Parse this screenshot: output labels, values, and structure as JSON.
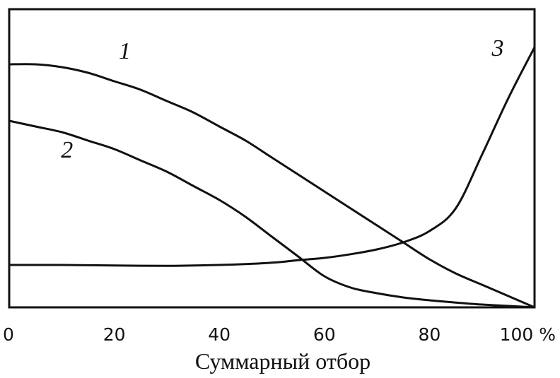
{
  "chart_data": {
    "type": "line",
    "xlabel": "Суммарный отбор",
    "x_ticks": [
      "0",
      "20",
      "40",
      "60",
      "80",
      "100 %"
    ],
    "xlim": [
      0,
      100
    ],
    "ylim": [
      0,
      100
    ],
    "y_ticks_shown": false,
    "grid": false,
    "legend": "none",
    "series": [
      {
        "name": "1",
        "color": "#111111",
        "points": [
          [
            0,
            86
          ],
          [
            5,
            86
          ],
          [
            10,
            85
          ],
          [
            15,
            83
          ],
          [
            20,
            80
          ],
          [
            25,
            77
          ],
          [
            30,
            73
          ],
          [
            35,
            69
          ],
          [
            40,
            64
          ],
          [
            45,
            59
          ],
          [
            50,
            53
          ],
          [
            55,
            47
          ],
          [
            60,
            41
          ],
          [
            65,
            35
          ],
          [
            70,
            29
          ],
          [
            75,
            23
          ],
          [
            80,
            17
          ],
          [
            85,
            12
          ],
          [
            90,
            8
          ],
          [
            95,
            4
          ],
          [
            100,
            0
          ]
        ]
      },
      {
        "name": "2",
        "color": "#111111",
        "points": [
          [
            0,
            66
          ],
          [
            5,
            64
          ],
          [
            10,
            62
          ],
          [
            15,
            59
          ],
          [
            20,
            56
          ],
          [
            25,
            52
          ],
          [
            30,
            48
          ],
          [
            35,
            43
          ],
          [
            40,
            38
          ],
          [
            45,
            32
          ],
          [
            50,
            25
          ],
          [
            55,
            18
          ],
          [
            60,
            11
          ],
          [
            65,
            7
          ],
          [
            70,
            5
          ],
          [
            75,
            3.5
          ],
          [
            80,
            2.5
          ],
          [
            85,
            1.7
          ],
          [
            90,
            1
          ],
          [
            95,
            0.5
          ],
          [
            100,
            0
          ]
        ]
      },
      {
        "name": "3",
        "color": "#111111",
        "points": [
          [
            0,
            15
          ],
          [
            10,
            15
          ],
          [
            20,
            14.8
          ],
          [
            30,
            14.7
          ],
          [
            40,
            15
          ],
          [
            50,
            15.8
          ],
          [
            55,
            16.7
          ],
          [
            60,
            17.5
          ],
          [
            65,
            18.8
          ],
          [
            70,
            20.5
          ],
          [
            75,
            23
          ],
          [
            80,
            27
          ],
          [
            85,
            35
          ],
          [
            90,
            54
          ],
          [
            95,
            74
          ],
          [
            100,
            92
          ]
        ]
      }
    ],
    "curve_labels": [
      {
        "text": "1",
        "series": "1",
        "x": 22,
        "y": 88
      },
      {
        "text": "2",
        "series": "2",
        "x": 11,
        "y": 53
      },
      {
        "text": "3",
        "series": "3",
        "x": 93,
        "y": 89
      }
    ]
  }
}
